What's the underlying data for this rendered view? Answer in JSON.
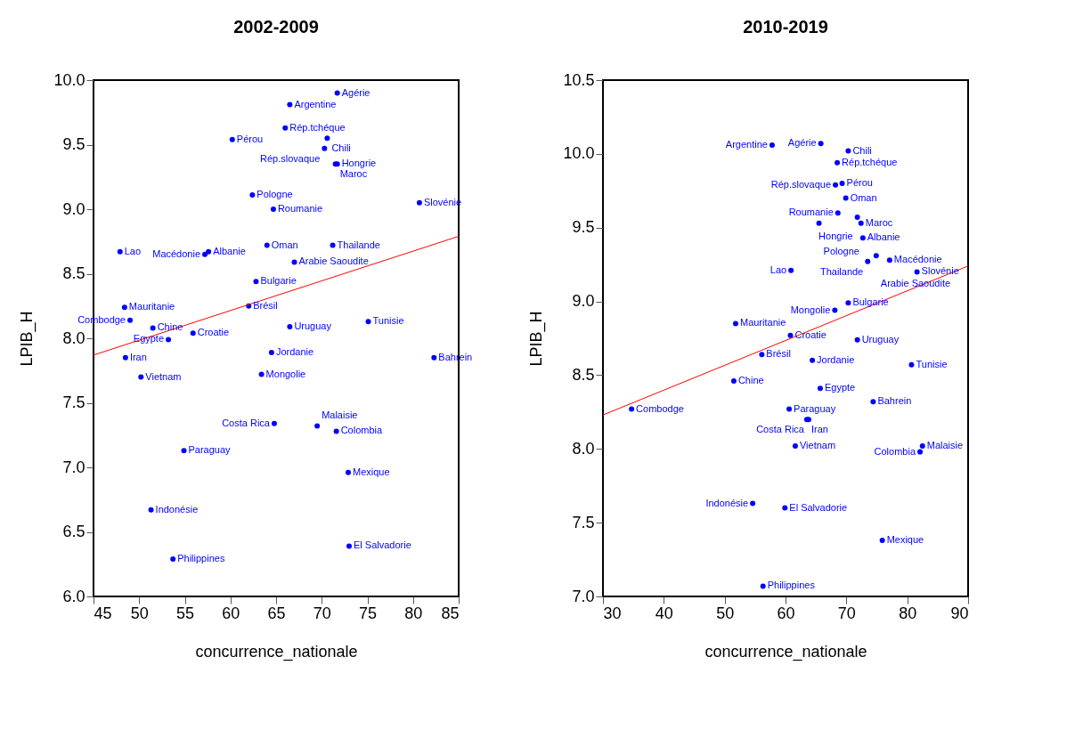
{
  "chart_data": [
    {
      "type": "scatter",
      "title": "2002-2009",
      "xlabel": "concurrence_nationale",
      "ylabel": "LPIB_H",
      "xlim": [
        45,
        85
      ],
      "ylim": [
        6,
        10
      ],
      "xticks": [
        45,
        50,
        55,
        60,
        65,
        70,
        75,
        80,
        85
      ],
      "yticks": [
        {
          "value": 6,
          "label": "6.0"
        },
        {
          "value": 6.5,
          "label": "6.5"
        },
        {
          "value": 7,
          "label": "7.0"
        },
        {
          "value": 7.5,
          "label": "7.5"
        },
        {
          "value": 8,
          "label": "8.0"
        },
        {
          "value": 8.5,
          "label": "8.5"
        },
        {
          "value": 9,
          "label": "9.0"
        },
        {
          "value": 9.5,
          "label": "9.5"
        },
        {
          "value": 10,
          "label": "10.0"
        }
      ],
      "series": [
        {
          "type": "scatter",
          "color": "#0000ff",
          "x": [
            71.7,
            66.5,
            66.0,
            60.2,
            70.6,
            70.3,
            71.5,
            71.7,
            62.4,
            64.7,
            80.7,
            47.9,
            57.6,
            57.2,
            64.0,
            71.2,
            67.0,
            62.8,
            62.0,
            48.4,
            49.0,
            51.5,
            55.9,
            53.2,
            66.5,
            75.1,
            48.5,
            64.5,
            82.3,
            50.2,
            63.4,
            64.8,
            69.5,
            71.6,
            54.9,
            72.9,
            51.3,
            73.0,
            53.7
          ],
          "values": [
            9.9,
            9.81,
            9.63,
            9.54,
            9.55,
            9.47,
            9.35,
            9.35,
            9.11,
            9.0,
            9.05,
            8.67,
            8.67,
            8.65,
            8.72,
            8.72,
            8.59,
            8.44,
            8.25,
            8.24,
            8.14,
            8.08,
            8.04,
            7.99,
            8.09,
            8.13,
            7.85,
            7.89,
            7.85,
            7.7,
            7.72,
            7.34,
            7.32,
            7.28,
            7.13,
            6.96,
            6.67,
            6.39,
            6.29
          ]
        },
        {
          "type": "line",
          "color": "#ff0000",
          "x": [
            45,
            85
          ],
          "values": [
            7.87,
            8.79
          ]
        }
      ],
      "annotations": [
        {
          "text": "Agérie",
          "x": 71.7,
          "y": 9.9
        },
        {
          "text": "Argentine",
          "x": 66.5,
          "y": 9.81
        },
        {
          "text": "Rép.tchéque",
          "x": 66.0,
          "y": 9.63
        },
        {
          "text": "Pérou",
          "x": 60.2,
          "y": 9.54
        },
        {
          "text": "Chili",
          "x": 70.6,
          "y": 9.55
        },
        {
          "text": "Rép.slovaque",
          "x": 70.3,
          "y": 9.47
        },
        {
          "text": "Maroc",
          "x": 71.5,
          "y": 9.35
        },
        {
          "text": "Hongrie",
          "x": 71.7,
          "y": 9.35
        },
        {
          "text": "Pologne",
          "x": 62.4,
          "y": 9.11
        },
        {
          "text": "Roumanie",
          "x": 64.7,
          "y": 9.0
        },
        {
          "text": "Slovénie",
          "x": 80.7,
          "y": 9.05
        },
        {
          "text": "Lao",
          "x": 47.9,
          "y": 8.67
        },
        {
          "text": "Albanie",
          "x": 57.6,
          "y": 8.67
        },
        {
          "text": "Macédonie",
          "x": 57.2,
          "y": 8.65
        },
        {
          "text": "Oman",
          "x": 64.0,
          "y": 8.72
        },
        {
          "text": "Thailande",
          "x": 71.2,
          "y": 8.72
        },
        {
          "text": "Arabie Saoudite",
          "x": 67.0,
          "y": 8.59
        },
        {
          "text": "Bulgarie",
          "x": 62.8,
          "y": 8.44
        },
        {
          "text": "Brésil",
          "x": 62.0,
          "y": 8.25
        },
        {
          "text": "Mauritanie",
          "x": 48.4,
          "y": 8.24
        },
        {
          "text": "Combodge",
          "x": 49.0,
          "y": 8.14
        },
        {
          "text": "Chine",
          "x": 51.5,
          "y": 8.08
        },
        {
          "text": "Croatie",
          "x": 55.9,
          "y": 8.04
        },
        {
          "text": "Egypte",
          "x": 53.2,
          "y": 7.99
        },
        {
          "text": "Uruguay",
          "x": 66.5,
          "y": 8.09
        },
        {
          "text": "Tunisie",
          "x": 75.1,
          "y": 8.13
        },
        {
          "text": "Iran",
          "x": 48.5,
          "y": 7.85
        },
        {
          "text": "Jordanie",
          "x": 64.5,
          "y": 7.89
        },
        {
          "text": "Bahrein",
          "x": 82.3,
          "y": 7.85
        },
        {
          "text": "Vietnam",
          "x": 50.2,
          "y": 7.7
        },
        {
          "text": "Mongolie",
          "x": 63.4,
          "y": 7.72
        },
        {
          "text": "Costa Rica",
          "x": 64.8,
          "y": 7.34
        },
        {
          "text": "Malaisie",
          "x": 69.5,
          "y": 7.32
        },
        {
          "text": "Colombia",
          "x": 71.6,
          "y": 7.28
        },
        {
          "text": "Paraguay",
          "x": 54.9,
          "y": 7.13
        },
        {
          "text": "Mexique",
          "x": 72.9,
          "y": 6.96
        },
        {
          "text": "Indonésie",
          "x": 51.3,
          "y": 6.67
        },
        {
          "text": "El Salvadorie",
          "x": 73.0,
          "y": 6.39
        },
        {
          "text": "Philippines",
          "x": 53.7,
          "y": 6.29
        }
      ]
    },
    {
      "type": "scatter",
      "title": "2010-2019",
      "xlabel": "concurrence_nationale",
      "ylabel": "LPIB_H",
      "xlim": [
        30,
        90
      ],
      "ylim": [
        7,
        10.5
      ],
      "xticks": [
        30,
        40,
        50,
        60,
        70,
        80,
        90
      ],
      "yticks": [
        {
          "value": 7,
          "label": "7.0"
        },
        {
          "value": 7.5,
          "label": "7.5"
        },
        {
          "value": 8,
          "label": "8.0"
        },
        {
          "value": 8.5,
          "label": "8.5"
        },
        {
          "value": 9,
          "label": "9.0"
        },
        {
          "value": 9.5,
          "label": "9.5"
        },
        {
          "value": 10,
          "label": "10.0"
        },
        {
          "value": 10.5,
          "label": "10.5"
        }
      ],
      "series": [
        {
          "type": "scatter",
          "color": "#0000ff",
          "x": [
            57.8,
            65.8,
            70.3,
            68.5,
            69.3,
            68.2,
            69.9,
            68.6,
            71.8,
            72.4,
            65.5,
            72.7,
            74.9,
            77.1,
            73.5,
            81.6,
            60.9,
            70.3,
            68.1,
            51.8,
            60.8,
            71.8,
            56.1,
            64.4,
            80.7,
            51.5,
            65.7,
            74.4,
            34.7,
            60.6,
            63.5,
            63.8,
            61.6,
            82.5,
            82.1,
            54.6,
            59.9,
            75.9,
            56.3
          ],
          "values": [
            10.06,
            10.07,
            10.02,
            9.94,
            9.8,
            9.79,
            9.7,
            9.6,
            9.57,
            9.53,
            9.53,
            9.43,
            9.31,
            9.28,
            9.27,
            9.2,
            9.21,
            8.99,
            8.94,
            8.85,
            8.77,
            8.74,
            8.64,
            8.6,
            8.57,
            8.46,
            8.41,
            8.32,
            8.27,
            8.27,
            8.2,
            8.2,
            8.02,
            8.02,
            7.98,
            7.63,
            7.6,
            7.38,
            7.07
          ]
        },
        {
          "type": "line",
          "color": "#ff0000",
          "x": [
            30,
            90
          ],
          "values": [
            8.23,
            9.24
          ]
        }
      ],
      "annotations": [
        {
          "text": "Argentine",
          "x": 57.8,
          "y": 10.06
        },
        {
          "text": "Agérie",
          "x": 65.8,
          "y": 10.07
        },
        {
          "text": "Chili",
          "x": 70.3,
          "y": 10.02
        },
        {
          "text": "Rép.tchéque",
          "x": 68.5,
          "y": 9.94
        },
        {
          "text": "Pérou",
          "x": 69.3,
          "y": 9.8
        },
        {
          "text": "Rép.slovaque",
          "x": 68.2,
          "y": 9.79
        },
        {
          "text": "Oman",
          "x": 69.9,
          "y": 9.7
        },
        {
          "text": "Roumanie",
          "x": 68.6,
          "y": 9.6
        },
        {
          "text": "Hongrie",
          "x": 71.8,
          "y": 9.57
        },
        {
          "text": "Maroc",
          "x": 72.4,
          "y": 9.53
        },
        {
          "text": "Pologne",
          "x": 65.5,
          "y": 9.53
        },
        {
          "text": "Albanie",
          "x": 72.7,
          "y": 9.43
        },
        {
          "text": "Arabie Saoudite",
          "x": 74.9,
          "y": 9.31
        },
        {
          "text": "Macédonie",
          "x": 77.1,
          "y": 9.28
        },
        {
          "text": "Thailande",
          "x": 73.5,
          "y": 9.27
        },
        {
          "text": "Slovénie",
          "x": 81.6,
          "y": 9.2
        },
        {
          "text": "Lao",
          "x": 60.9,
          "y": 9.21
        },
        {
          "text": "Bulgarie",
          "x": 70.3,
          "y": 8.99
        },
        {
          "text": "Mongolie",
          "x": 68.1,
          "y": 8.94
        },
        {
          "text": "Mauritanie",
          "x": 51.8,
          "y": 8.85
        },
        {
          "text": "Croatie",
          "x": 60.8,
          "y": 8.77
        },
        {
          "text": "Uruguay",
          "x": 71.8,
          "y": 8.74
        },
        {
          "text": "Brésil",
          "x": 56.1,
          "y": 8.64
        },
        {
          "text": "Jordanie",
          "x": 64.4,
          "y": 8.6
        },
        {
          "text": "Tunisie",
          "x": 80.7,
          "y": 8.57
        },
        {
          "text": "Chine",
          "x": 51.5,
          "y": 8.46
        },
        {
          "text": "Egypte",
          "x": 65.7,
          "y": 8.41
        },
        {
          "text": "Bahrein",
          "x": 74.4,
          "y": 8.32
        },
        {
          "text": "Combodge",
          "x": 34.7,
          "y": 8.27
        },
        {
          "text": "Paraguay",
          "x": 60.6,
          "y": 8.27
        },
        {
          "text": "Iran",
          "x": 63.5,
          "y": 8.2
        },
        {
          "text": "Costa Rica",
          "x": 63.8,
          "y": 8.2
        },
        {
          "text": "Vietnam",
          "x": 61.6,
          "y": 8.02
        },
        {
          "text": "Malaisie",
          "x": 82.5,
          "y": 8.02
        },
        {
          "text": "Colombia",
          "x": 82.1,
          "y": 7.98
        },
        {
          "text": "Indonésie",
          "x": 54.6,
          "y": 7.63
        },
        {
          "text": "El Salvadorie",
          "x": 59.9,
          "y": 7.6
        },
        {
          "text": "Mexique",
          "x": 75.9,
          "y": 7.38
        },
        {
          "text": "Philippines",
          "x": 56.3,
          "y": 7.07
        }
      ]
    }
  ]
}
